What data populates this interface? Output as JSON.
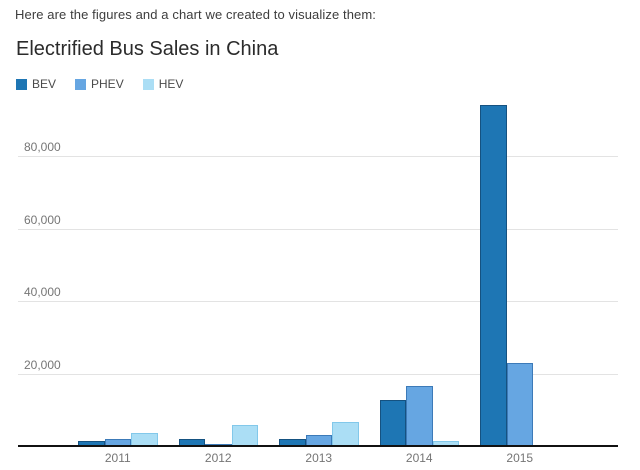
{
  "page": {
    "intro_text": "Here are the figures and a chart we created to visualize them:",
    "title": "Electrified Bus Sales in China"
  },
  "chart_data": {
    "type": "bar",
    "title": "Electrified Bus Sales in China",
    "categories": [
      "2011",
      "2012",
      "2013",
      "2014",
      "2015"
    ],
    "series": [
      {
        "name": "BEV",
        "color": "#1e76b4",
        "border_color": "#155281",
        "values": [
          1400,
          2000,
          1800,
          12600,
          94000
        ]
      },
      {
        "name": "PHEV",
        "color": "#66a6e2",
        "border_color": "#3c7ab8",
        "values": [
          2000,
          500,
          3000,
          16500,
          22800
        ]
      },
      {
        "name": "HEV",
        "color": "#abdef5",
        "border_color": "#82c8ea",
        "values": [
          3700,
          5700,
          6500,
          1300,
          0
        ]
      }
    ],
    "xlabel": "",
    "ylabel": "",
    "ylim": [
      0,
      100000
    ],
    "ytick_interval": 20000,
    "ytick_labels": [
      "20,000",
      "40,000",
      "60,000",
      "80,000"
    ],
    "grid": "horizontal",
    "gridline_color": "#e3e3e3",
    "axis_color": "#111111",
    "legend_position": "top-left"
  }
}
